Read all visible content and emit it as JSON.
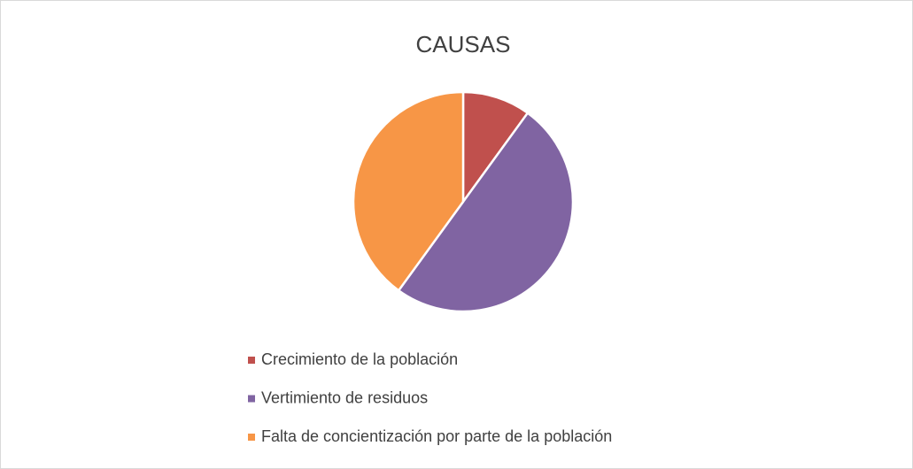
{
  "chart_data": {
    "type": "pie",
    "title": "CAUSAS",
    "categories": [
      "Crecimiento de la población",
      "Vertimiento de residuos",
      "Falta de concientización por parte de la población"
    ],
    "values": [
      10,
      50,
      40
    ],
    "colors": [
      "#c0504d",
      "#8064a2",
      "#f79646"
    ],
    "legend": "bottom"
  }
}
